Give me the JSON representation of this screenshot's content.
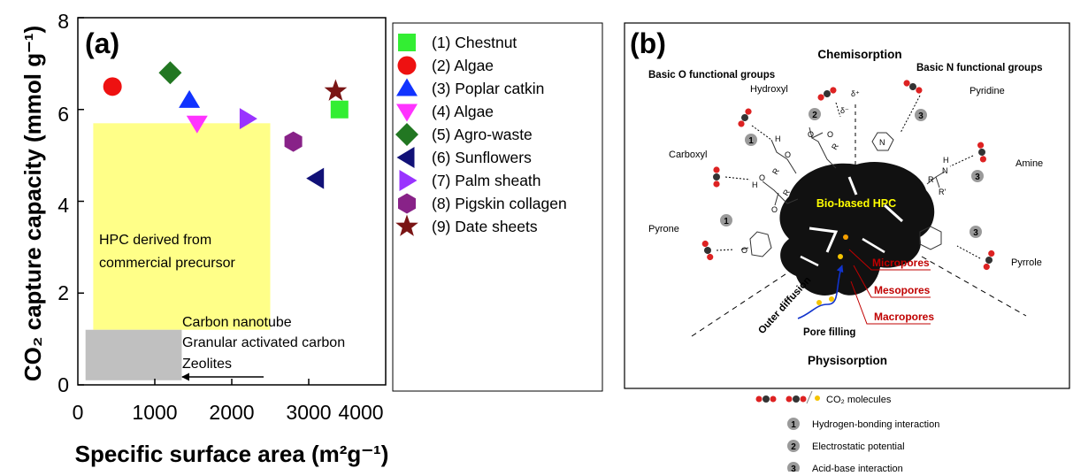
{
  "chart_data": [
    {
      "panel": "(a)",
      "type": "scatter",
      "xlabel": "Specific surface area (m²g⁻¹)",
      "ylabel": "CO₂ capture capacity (mmol g⁻¹)",
      "xlim": [
        0,
        4000
      ],
      "ylim": [
        0,
        8
      ],
      "xticks": [
        "0",
        "1000",
        "2000",
        "3000",
        "4000"
      ],
      "yticks": [
        "0",
        "2",
        "4",
        "6",
        "8"
      ],
      "legend_position": "right",
      "series": [
        {
          "name": "(1) Chestnut",
          "marker": "square",
          "color": "#33ee33",
          "x": 3400,
          "y": 6.0
        },
        {
          "name": "(2) Algae",
          "marker": "circle",
          "color": "#ee1111",
          "x": 450,
          "y": 6.5
        },
        {
          "name": "(3) Poplar catkin",
          "marker": "triangle-up",
          "color": "#1133ff",
          "x": 1450,
          "y": 6.2
        },
        {
          "name": "(4) Algae",
          "marker": "triangle-down",
          "color": "#ff33ff",
          "x": 1550,
          "y": 5.7
        },
        {
          "name": "(5) Agro-waste",
          "marker": "diamond",
          "color": "#227722",
          "x": 1200,
          "y": 6.8
        },
        {
          "name": "(6) Sunflowers",
          "marker": "triangle-left",
          "color": "#111177",
          "x": 3100,
          "y": 4.5
        },
        {
          "name": "(7) Palm sheath",
          "marker": "triangle-right",
          "color": "#9933ff",
          "x": 2200,
          "y": 5.8
        },
        {
          "name": "(8) Pigskin collagen",
          "marker": "hexagon",
          "color": "#882288",
          "x": 2800,
          "y": 5.3
        },
        {
          "name": "(9) Date sheets",
          "marker": "star",
          "color": "#7a1515",
          "x": 3350,
          "y": 6.4
        }
      ],
      "regions": [
        {
          "label_lines": [
            "HPC derived from",
            "commercial precursor"
          ],
          "color": "#ffff88",
          "x": [
            200,
            2500
          ],
          "y": [
            1.2,
            5.7
          ]
        },
        {
          "label_lines": [
            "Carbon nanotube",
            "Granular activated carbon",
            "Zeolites"
          ],
          "color": "#c0c0c0",
          "x": [
            100,
            1350
          ],
          "y": [
            0.1,
            1.2
          ]
        }
      ]
    }
  ],
  "diagram": {
    "panel": "(b)",
    "top_title": "Chemisorption",
    "bottom_title": "Physisorption",
    "left_group": "Basic O functional groups",
    "right_group": "Basic N functional groups",
    "center_label": "Bio-based HPC",
    "groups": {
      "hydroxyl": "Hydroxyl",
      "carboxyl": "Carboxyl",
      "pyrone": "Pyrone",
      "pyridine": "Pyridine",
      "amine": "Amine",
      "pyrrole": "Pyrrole"
    },
    "pores": [
      "Micropores",
      "Mesopores",
      "Macropores"
    ],
    "diffusion": "Outer diffusion",
    "pore_filling": "Pore filling",
    "charges": {
      "delta_plus": "δ⁺",
      "delta_minus": "δ⁻"
    },
    "atoms": {
      "h": "H",
      "o": "O",
      "n": "N",
      "r": "R",
      "r_prime": "R'"
    },
    "markers": [
      "1",
      "2",
      "3"
    ],
    "legend": [
      {
        "label": "CO₂ molecules"
      },
      {
        "num": "1",
        "label": "Hydrogen-bonding interaction"
      },
      {
        "num": "2",
        "label": "Electrostatic potential"
      },
      {
        "num": "3",
        "label": "Acid-base interaction"
      }
    ]
  }
}
